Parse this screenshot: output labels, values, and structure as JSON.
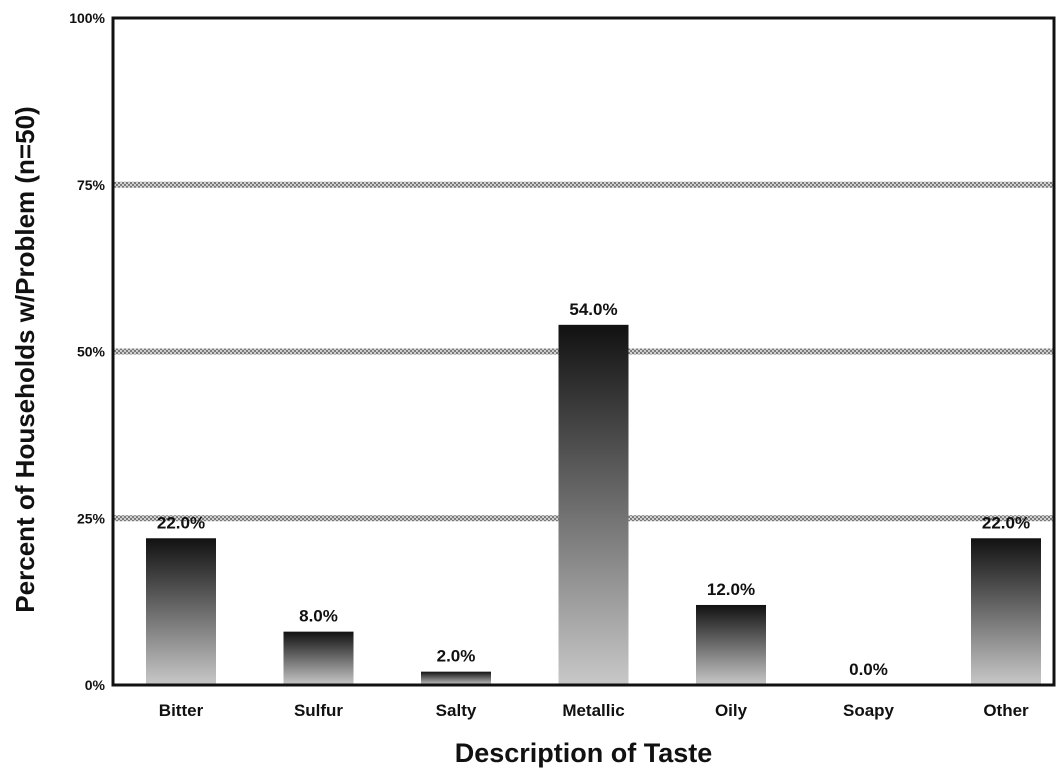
{
  "chart_data": {
    "type": "bar",
    "categories": [
      "Bitter",
      "Sulfur",
      "Salty",
      "Metallic",
      "Oily",
      "Soapy",
      "Other"
    ],
    "values": [
      22.0,
      8.0,
      2.0,
      54.0,
      12.0,
      0.0,
      22.0
    ],
    "value_labels": [
      "22.0%",
      "8.0%",
      "2.0%",
      "54.0%",
      "12.0%",
      "0.0%",
      "22.0%"
    ],
    "xlabel": "Description of Taste",
    "ylabel": "Percent of Households w/Problem (n=50)",
    "ylim": [
      0,
      100
    ],
    "yticks": [
      0,
      25,
      50,
      75,
      100
    ],
    "ytick_labels": [
      "0%",
      "25%",
      "50%",
      "75%",
      "100%"
    ],
    "grid": true,
    "legend": "none",
    "colors": {
      "bar_top": "#111111",
      "bar_bottom": "#c8c8c8",
      "gridline": "#9a9a9a",
      "frame": "#111111"
    }
  }
}
